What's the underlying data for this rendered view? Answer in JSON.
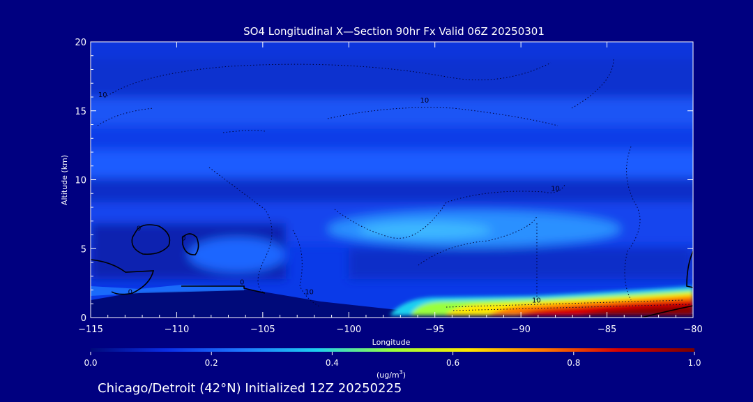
{
  "chart_data": {
    "type": "heatmap",
    "title": "SO4 Longitudinal X—Section 90hr  Fx Valid 06Z 20250301",
    "xlabel": "Longitude",
    "ylabel": "Altitude (km)",
    "xlim": [
      -115,
      -80
    ],
    "ylim": [
      0,
      20
    ],
    "x_ticks": [
      -115,
      -110,
      -105,
      -100,
      -95,
      -90,
      -85,
      -80
    ],
    "x_tick_labels": [
      "−115",
      "−110",
      "−105",
      "−100",
      "−95",
      "−90",
      "−85",
      "−80"
    ],
    "y_ticks": [
      0,
      5,
      10,
      15,
      20
    ],
    "y_tick_labels": [
      "0",
      "5",
      "10",
      "15",
      "20"
    ],
    "colorbar": {
      "min": 0.0,
      "max": 1.0,
      "ticks": [
        0.0,
        0.2,
        0.4,
        0.6,
        0.8,
        1.0
      ],
      "tick_labels": [
        "0.0",
        "0.2",
        "0.4",
        "0.6",
        "0.8",
        "1.0"
      ],
      "units_label": "(ug/m",
      "units_sup": "3",
      "units_close": ")",
      "colors": [
        "#000a7a",
        "#0a2ee6",
        "#1e78ff",
        "#1ed0f0",
        "#9aff3c",
        "#ffe800",
        "#ff7a00",
        "#d80000",
        "#780000"
      ]
    },
    "contour_labels": [
      {
        "text": "10",
        "lon": -114.3,
        "alt": 16.0
      },
      {
        "text": "10",
        "lon": -95.6,
        "alt": 15.6
      },
      {
        "text": "10",
        "lon": -88.0,
        "alt": 9.2
      },
      {
        "text": "10",
        "lon": -89.1,
        "alt": 1.1
      },
      {
        "text": "10",
        "lon": -102.3,
        "alt": 1.7
      },
      {
        "text": "0",
        "lon": -112.2,
        "alt": 6.3
      },
      {
        "text": "0",
        "lon": -109.6,
        "alt": 5.6
      },
      {
        "text": "0",
        "lon": -106.2,
        "alt": 2.4
      },
      {
        "text": "0",
        "lon": -112.7,
        "alt": 1.7
      }
    ],
    "bands_note": "",
    "footer": "Chicago/Detroit (42°N) Initialized 12Z 20250225"
  }
}
